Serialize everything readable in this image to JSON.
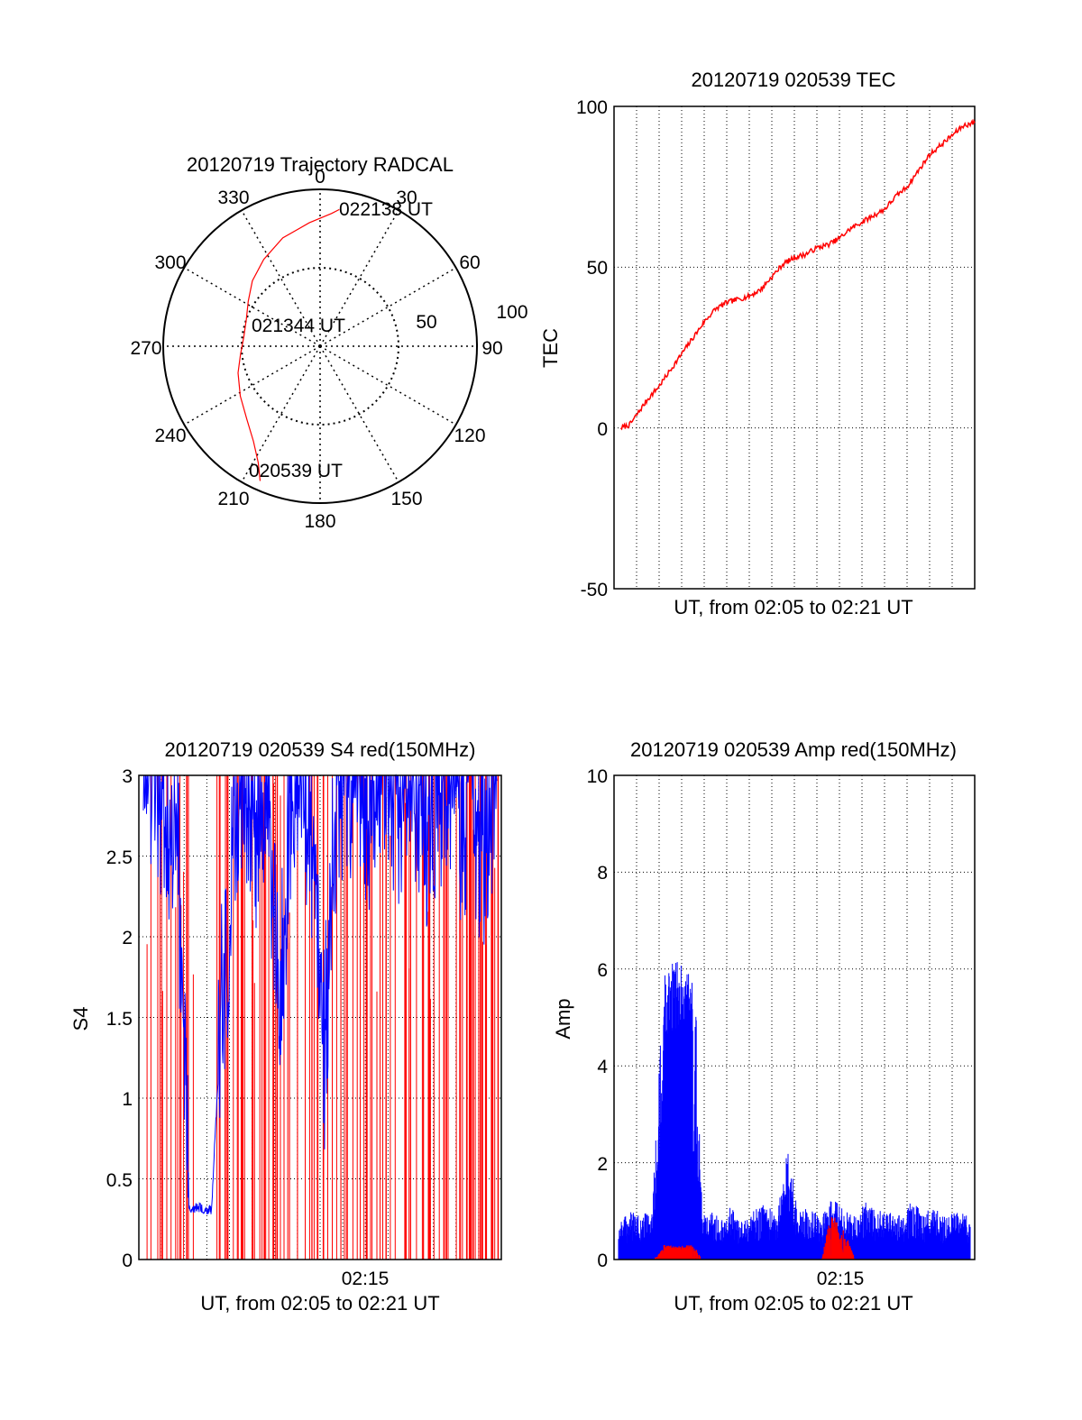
{
  "colors": {
    "red": "#ff0000",
    "blue": "#0000ff",
    "axis": "#000000",
    "grid": "#000000"
  },
  "polar": {
    "title": "20120719 Trajectory RADCAL",
    "angle_labels": [
      "0",
      "30",
      "60",
      "90",
      "120",
      "150",
      "180",
      "210",
      "240",
      "270",
      "300",
      "330"
    ],
    "radius_labels": [
      "50",
      "100"
    ],
    "point_labels": [
      "022138 UT",
      "021344 UT",
      "020539 UT"
    ]
  },
  "tec": {
    "title": "20120719 020539 TEC",
    "xlabel": "UT, from 02:05 to 02:21 UT",
    "ylabel": "TEC",
    "ytick_labels": [
      "100",
      "50",
      "0",
      "-50"
    ]
  },
  "s4": {
    "title": "20120719 020539 S4 red(150MHz)",
    "xlabel": "UT, from 02:05 to 02:21 UT",
    "ylabel": "S4",
    "xtick_label": "02:15",
    "ytick_labels": [
      "3",
      "2.5",
      "2",
      "1.5",
      "1",
      "0.5",
      "0"
    ]
  },
  "amp": {
    "title": "20120719 020539 Amp red(150MHz)",
    "xlabel": "UT, from 02:05 to 02:21 UT",
    "ylabel": "Amp",
    "xtick_label": "02:15",
    "ytick_labels": [
      "10",
      "8",
      "6",
      "4",
      "2",
      "0"
    ]
  },
  "chart_data": [
    {
      "type": "scatter",
      "title": "20120719 Trajectory RADCAL",
      "coordinate_system": "polar (azimuth deg, zenith angle deg)",
      "rlim": [
        0,
        100
      ],
      "grid": true,
      "series": [
        {
          "name": "",
          "color": "#ff0000",
          "azimuth": [
            204,
            208,
            215,
            225,
            238,
            252,
            264,
            277,
            290,
            302,
            314,
            327,
            341,
            355,
            5,
            8
          ],
          "zenith": [
            94,
            84,
            74,
            66,
            60,
            55,
            51,
            49,
            50,
            54,
            60,
            66,
            73,
            79,
            85,
            88
          ]
        }
      ]
    },
    {
      "type": "line",
      "title": "20120719 020539 TEC",
      "xlabel": "UT, from 02:05 to 02:21 UT",
      "ylabel": "TEC",
      "xlim": [
        0,
        16
      ],
      "ylim": [
        -50,
        100
      ],
      "grid": true,
      "x": [
        0.3,
        0.7,
        1.0,
        1.5,
        2.0,
        2.5,
        3.0,
        3.5,
        4.0,
        4.5,
        5.0,
        5.5,
        6.0,
        6.5,
        7.0,
        7.5,
        8.0,
        8.5,
        9.0,
        9.5,
        10.0,
        10.5,
        11.0,
        11.5,
        12.0,
        12.5,
        13.0,
        13.5,
        14.0,
        14.5,
        15.0,
        15.5,
        16.0
      ],
      "series": [
        {
          "name": "",
          "color": "#ff0000",
          "values": [
            0,
            1,
            4,
            9,
            13,
            18,
            23,
            28,
            33,
            37,
            39,
            40,
            41,
            43,
            47,
            51,
            53,
            54,
            56,
            57,
            59,
            62,
            64,
            66,
            68,
            72,
            75,
            80,
            85,
            88,
            91,
            94,
            95
          ]
        }
      ]
    },
    {
      "type": "line",
      "title": "20120719 020539 S4 red(150MHz)",
      "xlabel": "UT, from 02:05 to 02:21 UT",
      "ylabel": "S4",
      "xlim": [
        0,
        16
      ],
      "ylim": [
        0,
        3
      ],
      "grid": true,
      "x": [
        0.2,
        0.7,
        1.2,
        1.7,
        2.2,
        2.7,
        3.2,
        3.6,
        3.9,
        4.2,
        4.7,
        5.2,
        5.7,
        6.2,
        6.7,
        7.2,
        7.7,
        8.2,
        8.7,
        9.2,
        9.7,
        10.2,
        10.7,
        11.2,
        11.7,
        12.2,
        12.7,
        13.2,
        13.7,
        14.2,
        14.7,
        15.2,
        15.7
      ],
      "series": [
        {
          "name": "",
          "color": "#0000ff",
          "values": [
            2.7,
            2.8,
            2.5,
            2.4,
            0.32,
            0.32,
            0.3,
            1.4,
            1.6,
            2.6,
            2.8,
            2.4,
            2.7,
            1.3,
            2.7,
            2.8,
            2.3,
            1.1,
            2.6,
            2.8,
            2.7,
            2.5,
            2.8,
            2.7,
            2.6,
            2.8,
            2.4,
            2.7,
            2.8,
            2.5,
            2.7,
            2.3,
            2.8
          ]
        }
      ]
    },
    {
      "type": "line",
      "title": "20120719 020539 Amp red(150MHz)",
      "xlabel": "UT, from 02:05 to 02:21 UT",
      "ylabel": "Amp",
      "xlim": [
        0,
        16
      ],
      "ylim": [
        0,
        10
      ],
      "grid": true,
      "x": [
        0.2,
        0.7,
        1.2,
        1.7,
        2.2,
        2.7,
        3.2,
        3.6,
        3.9,
        4.2,
        4.7,
        5.2,
        5.7,
        6.2,
        6.7,
        7.2,
        7.7,
        8.2,
        8.7,
        9.2,
        9.7,
        10.2,
        10.7,
        11.2,
        11.7,
        12.2,
        12.7,
        13.2,
        13.7,
        14.2,
        14.7,
        15.2,
        15.7
      ],
      "series": [
        {
          "name": "",
          "color": "#0000ff",
          "values": [
            0.8,
            1.0,
            0.9,
            1.1,
            5.9,
            6.2,
            6.0,
            5.8,
            1.2,
            1.0,
            0.9,
            1.1,
            0.8,
            1.0,
            1.2,
            0.9,
            2.4,
            1.0,
            1.1,
            0.9,
            1.3,
            1.0,
            0.9,
            1.2,
            1.0,
            1.1,
            0.9,
            1.2,
            1.0,
            1.1,
            0.9,
            1.0,
            0.9
          ]
        },
        {
          "name": "",
          "color": "#ff0000",
          "values": [
            0,
            0,
            0,
            0,
            0.3,
            0.3,
            0.3,
            0.3,
            0,
            0,
            0,
            0,
            0,
            0,
            0,
            0,
            0,
            0,
            0,
            0,
            1.4,
            0.8,
            0,
            0,
            0,
            0,
            0,
            0,
            0,
            0,
            0,
            0,
            0
          ]
        }
      ]
    }
  ]
}
